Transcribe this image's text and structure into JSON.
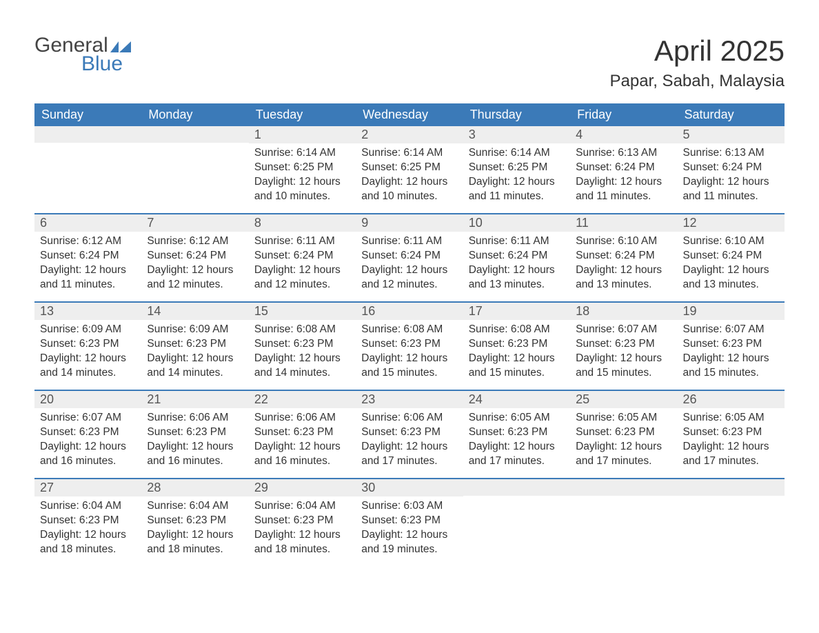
{
  "logo": {
    "text1": "General",
    "text2": "Blue",
    "text1_color": "#444444",
    "text2_color": "#3b7ab8"
  },
  "title": "April 2025",
  "location": "Papar, Sabah, Malaysia",
  "colors": {
    "header_bg": "#3b7ab8",
    "header_fg": "#ffffff",
    "daynum_bg": "#eeeeee",
    "week_border": "#3b7ab8",
    "body_bg": "#ffffff",
    "text": "#333333"
  },
  "weekdays": [
    "Sunday",
    "Monday",
    "Tuesday",
    "Wednesday",
    "Thursday",
    "Friday",
    "Saturday"
  ],
  "weeks": [
    [
      {
        "num": "",
        "sunrise": "",
        "sunset": "",
        "daylight": ""
      },
      {
        "num": "",
        "sunrise": "",
        "sunset": "",
        "daylight": ""
      },
      {
        "num": "1",
        "sunrise": "Sunrise: 6:14 AM",
        "sunset": "Sunset: 6:25 PM",
        "daylight": "Daylight: 12 hours and 10 minutes."
      },
      {
        "num": "2",
        "sunrise": "Sunrise: 6:14 AM",
        "sunset": "Sunset: 6:25 PM",
        "daylight": "Daylight: 12 hours and 10 minutes."
      },
      {
        "num": "3",
        "sunrise": "Sunrise: 6:14 AM",
        "sunset": "Sunset: 6:25 PM",
        "daylight": "Daylight: 12 hours and 11 minutes."
      },
      {
        "num": "4",
        "sunrise": "Sunrise: 6:13 AM",
        "sunset": "Sunset: 6:24 PM",
        "daylight": "Daylight: 12 hours and 11 minutes."
      },
      {
        "num": "5",
        "sunrise": "Sunrise: 6:13 AM",
        "sunset": "Sunset: 6:24 PM",
        "daylight": "Daylight: 12 hours and 11 minutes."
      }
    ],
    [
      {
        "num": "6",
        "sunrise": "Sunrise: 6:12 AM",
        "sunset": "Sunset: 6:24 PM",
        "daylight": "Daylight: 12 hours and 11 minutes."
      },
      {
        "num": "7",
        "sunrise": "Sunrise: 6:12 AM",
        "sunset": "Sunset: 6:24 PM",
        "daylight": "Daylight: 12 hours and 12 minutes."
      },
      {
        "num": "8",
        "sunrise": "Sunrise: 6:11 AM",
        "sunset": "Sunset: 6:24 PM",
        "daylight": "Daylight: 12 hours and 12 minutes."
      },
      {
        "num": "9",
        "sunrise": "Sunrise: 6:11 AM",
        "sunset": "Sunset: 6:24 PM",
        "daylight": "Daylight: 12 hours and 12 minutes."
      },
      {
        "num": "10",
        "sunrise": "Sunrise: 6:11 AM",
        "sunset": "Sunset: 6:24 PM",
        "daylight": "Daylight: 12 hours and 13 minutes."
      },
      {
        "num": "11",
        "sunrise": "Sunrise: 6:10 AM",
        "sunset": "Sunset: 6:24 PM",
        "daylight": "Daylight: 12 hours and 13 minutes."
      },
      {
        "num": "12",
        "sunrise": "Sunrise: 6:10 AM",
        "sunset": "Sunset: 6:24 PM",
        "daylight": "Daylight: 12 hours and 13 minutes."
      }
    ],
    [
      {
        "num": "13",
        "sunrise": "Sunrise: 6:09 AM",
        "sunset": "Sunset: 6:23 PM",
        "daylight": "Daylight: 12 hours and 14 minutes."
      },
      {
        "num": "14",
        "sunrise": "Sunrise: 6:09 AM",
        "sunset": "Sunset: 6:23 PM",
        "daylight": "Daylight: 12 hours and 14 minutes."
      },
      {
        "num": "15",
        "sunrise": "Sunrise: 6:08 AM",
        "sunset": "Sunset: 6:23 PM",
        "daylight": "Daylight: 12 hours and 14 minutes."
      },
      {
        "num": "16",
        "sunrise": "Sunrise: 6:08 AM",
        "sunset": "Sunset: 6:23 PM",
        "daylight": "Daylight: 12 hours and 15 minutes."
      },
      {
        "num": "17",
        "sunrise": "Sunrise: 6:08 AM",
        "sunset": "Sunset: 6:23 PM",
        "daylight": "Daylight: 12 hours and 15 minutes."
      },
      {
        "num": "18",
        "sunrise": "Sunrise: 6:07 AM",
        "sunset": "Sunset: 6:23 PM",
        "daylight": "Daylight: 12 hours and 15 minutes."
      },
      {
        "num": "19",
        "sunrise": "Sunrise: 6:07 AM",
        "sunset": "Sunset: 6:23 PM",
        "daylight": "Daylight: 12 hours and 15 minutes."
      }
    ],
    [
      {
        "num": "20",
        "sunrise": "Sunrise: 6:07 AM",
        "sunset": "Sunset: 6:23 PM",
        "daylight": "Daylight: 12 hours and 16 minutes."
      },
      {
        "num": "21",
        "sunrise": "Sunrise: 6:06 AM",
        "sunset": "Sunset: 6:23 PM",
        "daylight": "Daylight: 12 hours and 16 minutes."
      },
      {
        "num": "22",
        "sunrise": "Sunrise: 6:06 AM",
        "sunset": "Sunset: 6:23 PM",
        "daylight": "Daylight: 12 hours and 16 minutes."
      },
      {
        "num": "23",
        "sunrise": "Sunrise: 6:06 AM",
        "sunset": "Sunset: 6:23 PM",
        "daylight": "Daylight: 12 hours and 17 minutes."
      },
      {
        "num": "24",
        "sunrise": "Sunrise: 6:05 AM",
        "sunset": "Sunset: 6:23 PM",
        "daylight": "Daylight: 12 hours and 17 minutes."
      },
      {
        "num": "25",
        "sunrise": "Sunrise: 6:05 AM",
        "sunset": "Sunset: 6:23 PM",
        "daylight": "Daylight: 12 hours and 17 minutes."
      },
      {
        "num": "26",
        "sunrise": "Sunrise: 6:05 AM",
        "sunset": "Sunset: 6:23 PM",
        "daylight": "Daylight: 12 hours and 17 minutes."
      }
    ],
    [
      {
        "num": "27",
        "sunrise": "Sunrise: 6:04 AM",
        "sunset": "Sunset: 6:23 PM",
        "daylight": "Daylight: 12 hours and 18 minutes."
      },
      {
        "num": "28",
        "sunrise": "Sunrise: 6:04 AM",
        "sunset": "Sunset: 6:23 PM",
        "daylight": "Daylight: 12 hours and 18 minutes."
      },
      {
        "num": "29",
        "sunrise": "Sunrise: 6:04 AM",
        "sunset": "Sunset: 6:23 PM",
        "daylight": "Daylight: 12 hours and 18 minutes."
      },
      {
        "num": "30",
        "sunrise": "Sunrise: 6:03 AM",
        "sunset": "Sunset: 6:23 PM",
        "daylight": "Daylight: 12 hours and 19 minutes."
      },
      {
        "num": "",
        "sunrise": "",
        "sunset": "",
        "daylight": ""
      },
      {
        "num": "",
        "sunrise": "",
        "sunset": "",
        "daylight": ""
      },
      {
        "num": "",
        "sunrise": "",
        "sunset": "",
        "daylight": ""
      }
    ]
  ]
}
